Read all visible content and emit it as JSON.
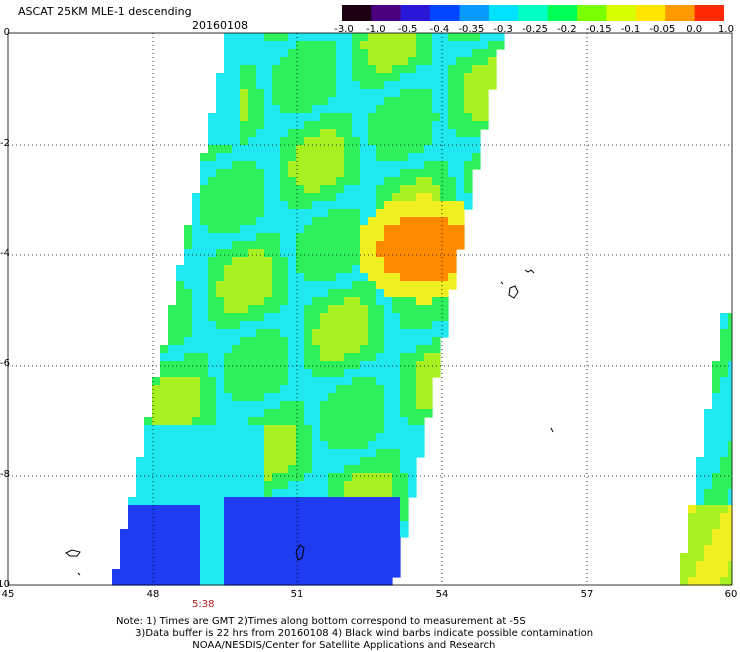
{
  "header": {
    "title": "ASCAT 25KM MLE-1 descending",
    "date": "20160108"
  },
  "colorbar": {
    "ticks": [
      "-3.0",
      "-1.0",
      "-0.5",
      "-0.4",
      "-0.35",
      "-0.3",
      "-0.25",
      "-0.2",
      "-0.15",
      "-0.1",
      "-0.05",
      "0.0",
      "1.0"
    ],
    "colors": [
      "#1a0010",
      "#4b0082",
      "#2a18d8",
      "#0046ff",
      "#0a9aff",
      "#00e0ff",
      "#00ffc0",
      "#00ff55",
      "#7aff00",
      "#d8ff00",
      "#ffe600",
      "#ff9a00",
      "#ff2a00"
    ]
  },
  "axes": {
    "y_ticks": [
      "0",
      "-2",
      "-4",
      "-6",
      "-8",
      "-10"
    ],
    "x_ticks": [
      "45",
      "48",
      "51",
      "54",
      "57",
      "60"
    ],
    "lat_range": [
      -10,
      0
    ],
    "lon_range": [
      45,
      60
    ]
  },
  "time_label": "5:38",
  "notes": [
    "Note: 1) Times are GMT 2)Times along bottom correspond to measurement at -5S",
    "      3)Data buffer is 22 hrs from 20160108 4) Black wind barbs indicate possible contamination",
    "                        NOAA/NESDIS/Center for Satellite Applications and Research"
  ],
  "palette": {
    "blue": "#1f3cf0",
    "cyan": "#1fe8f0",
    "green": "#2df05a",
    "lime": "#a8f020",
    "yellow": "#f0f020",
    "orange": "#ff8a00",
    "violet": "#6020d0"
  }
}
